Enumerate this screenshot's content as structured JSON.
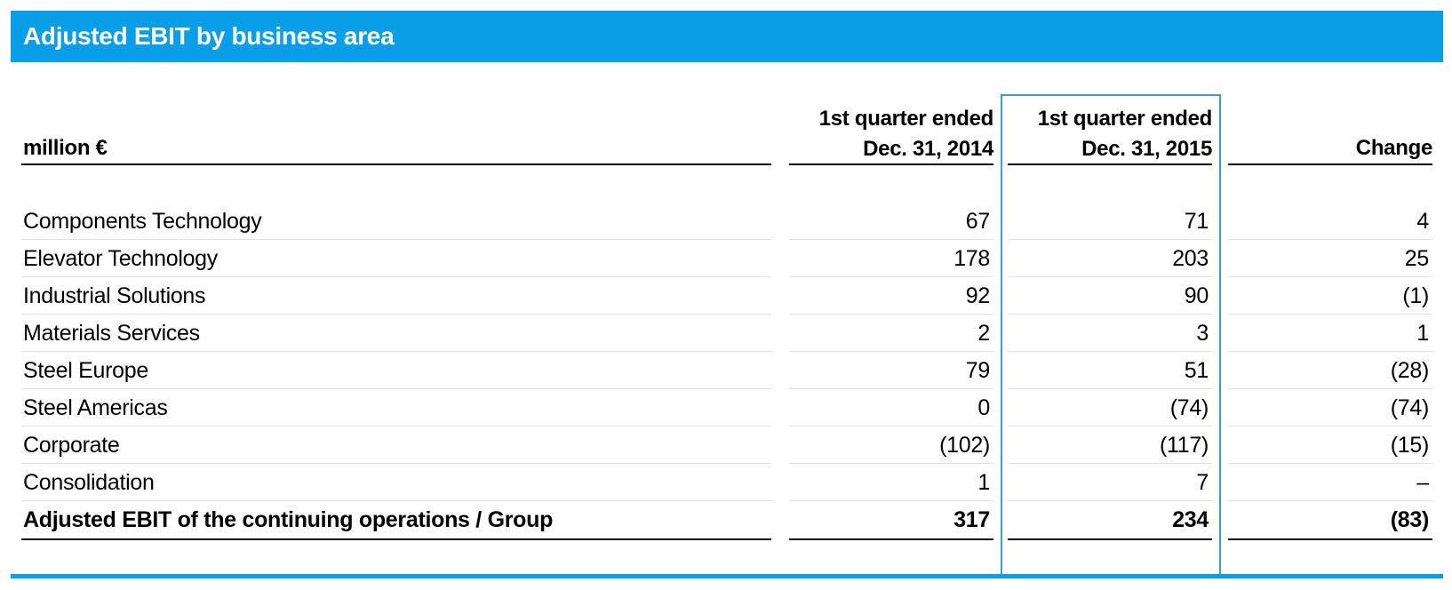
{
  "title": "Adjusted EBIT by business area",
  "header": {
    "label": "million €",
    "col1": [
      "1st quarter ended",
      "Dec. 31, 2014"
    ],
    "col2": [
      "1st quarter ended",
      "Dec. 31, 2015"
    ],
    "col3": "Change"
  },
  "rows": [
    {
      "name": "Components Technology",
      "q2014": "67",
      "q2015": "71",
      "change": "4"
    },
    {
      "name": "Elevator Technology",
      "q2014": "178",
      "q2015": "203",
      "change": "25"
    },
    {
      "name": "Industrial Solutions",
      "q2014": "92",
      "q2015": "90",
      "change": "(1)"
    },
    {
      "name": "Materials Services",
      "q2014": "2",
      "q2015": "3",
      "change": "1"
    },
    {
      "name": "Steel Europe",
      "q2014": "79",
      "q2015": "51",
      "change": "(28)"
    },
    {
      "name": "Steel Americas",
      "q2014": "0",
      "q2015": "(74)",
      "change": "(74)"
    },
    {
      "name": "Corporate",
      "q2014": "(102)",
      "q2015": "(117)",
      "change": "(15)"
    },
    {
      "name": "Consolidation",
      "q2014": "1",
      "q2015": "7",
      "change": "–"
    }
  ],
  "total": {
    "name": "Adjusted EBIT of the continuing operations / Group",
    "q2014": "317",
    "q2015": "234",
    "change": "(83)"
  },
  "colors": {
    "accent": "#0a9ee8",
    "highlight_border": "#3a9ecf"
  }
}
